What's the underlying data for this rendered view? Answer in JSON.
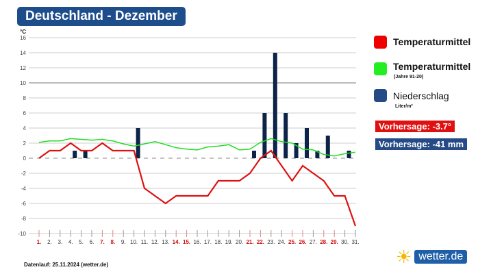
{
  "title": "Deutschland - Dezember",
  "legend": {
    "temp": "Temperaturmittel",
    "temp_norm": "Temperaturmittel",
    "temp_norm_sub": "(Jahre 91-20)",
    "precip": "Niederschlag",
    "precip_sub": "Liter/m²",
    "forecast_temp": "Vorhersage: -3.7°",
    "forecast_precip": "Vorhersage: -41 mm"
  },
  "footer": "Datenlauf: 25.11.2024 (wetter.de)",
  "logo": "wetter.de",
  "colors": {
    "temp": "#dd1111",
    "temp_norm": "#22dd22",
    "precip": "#0d2347",
    "title_bg": "#1e4d8c",
    "weekend": "#cc1111"
  },
  "chart_data": {
    "type": "line+bar",
    "ylabel": "°C",
    "ylim": [
      -10,
      16
    ],
    "yticks": [
      16,
      14,
      12,
      10,
      8,
      6,
      4,
      2,
      0,
      -2,
      -4,
      -6,
      -8,
      -10
    ],
    "grid": true,
    "categories": [
      "1.",
      "2.",
      "3.",
      "4.",
      "5.",
      "6.",
      "7.",
      "8.",
      "9.",
      "10.",
      "11.",
      "12.",
      "13.",
      "14.",
      "15.",
      "16.",
      "17.",
      "18.",
      "19.",
      "20.",
      "21.",
      "22.",
      "23.",
      "24.",
      "25.",
      "26.",
      "27.",
      "28.",
      "29.",
      "30.",
      "31."
    ],
    "weekend_days": [
      1,
      7,
      8,
      14,
      15,
      21,
      22,
      25,
      26,
      28,
      29
    ],
    "series": [
      {
        "name": "Temperaturmittel",
        "type": "line",
        "values": [
          0,
          1,
          1,
          2,
          1,
          1,
          2,
          1,
          1,
          1,
          -4,
          -5,
          -6,
          -5,
          -5,
          -5,
          -5,
          -3,
          -3,
          -3,
          -2,
          0,
          1,
          -1,
          -3,
          -1,
          -2,
          -3,
          -5,
          -5,
          -9
        ]
      },
      {
        "name": "Temperaturmittel (Jahre 91-20)",
        "type": "line",
        "values": [
          2.1,
          2.3,
          2.3,
          2.6,
          2.5,
          2.4,
          2.5,
          2.3,
          1.9,
          1.6,
          1.9,
          2.2,
          1.8,
          1.4,
          1.2,
          1.1,
          1.5,
          1.6,
          1.8,
          1.1,
          1.2,
          2.1,
          2.6,
          2.2,
          2.0,
          1.2,
          1.1,
          0.5,
          0.3,
          0.6,
          0.8
        ]
      },
      {
        "name": "Niederschlag",
        "type": "bar",
        "values": [
          0,
          0,
          0,
          1,
          1,
          0,
          0,
          0,
          0,
          4,
          0,
          0,
          0,
          0,
          0,
          0,
          0,
          0,
          0,
          0,
          1,
          6,
          14,
          6,
          2,
          4,
          1,
          3,
          0,
          1,
          0
        ]
      }
    ]
  }
}
